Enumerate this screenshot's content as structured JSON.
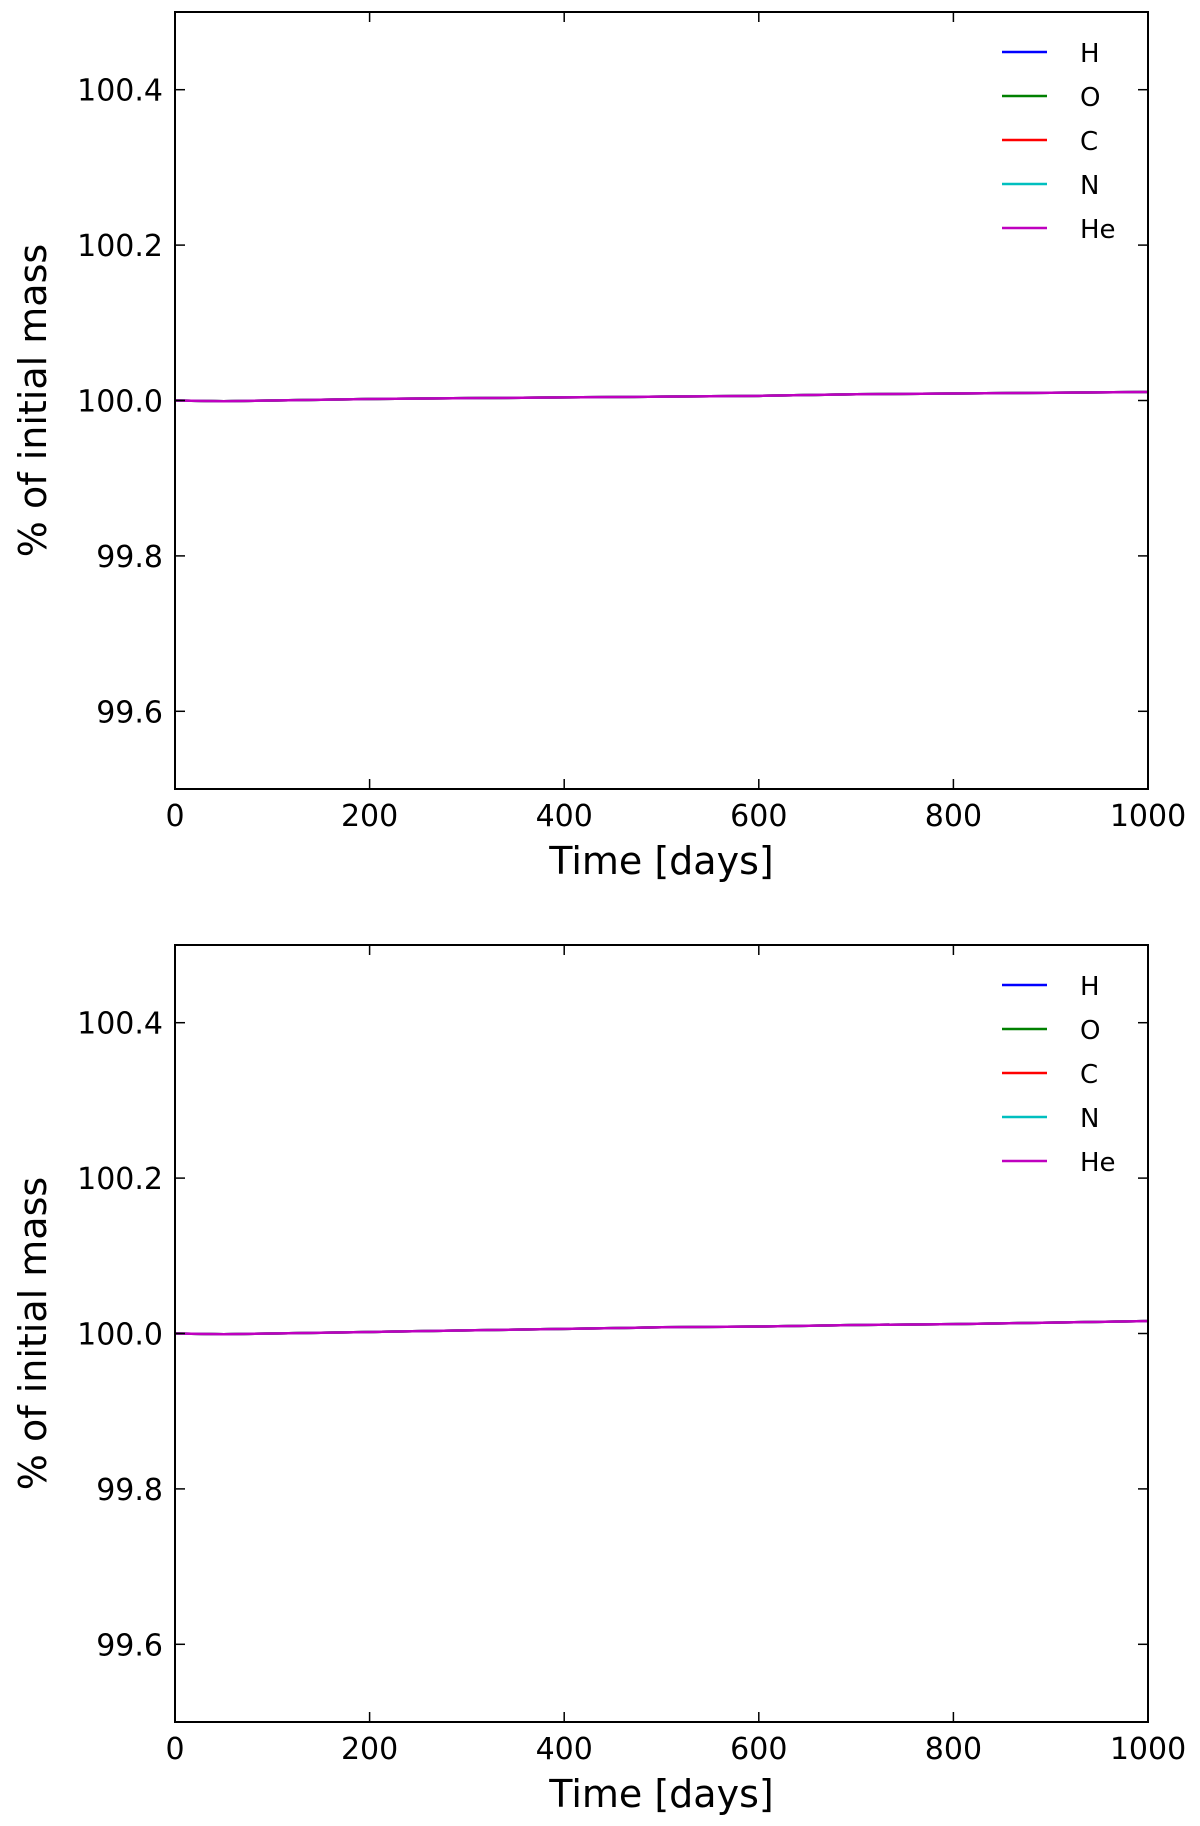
{
  "chart_data": [
    {
      "type": "line",
      "xlabel": "Time [days]",
      "ylabel": "% of initial mass",
      "xlim": [
        0,
        1000
      ],
      "ylim": [
        99.5,
        100.5
      ],
      "xticks": [
        0,
        200,
        400,
        600,
        800,
        1000
      ],
      "xtick_labels": [
        "0",
        "200",
        "400",
        "600",
        "800",
        "1000"
      ],
      "yticks": [
        99.6,
        99.8,
        100.0,
        100.2,
        100.4
      ],
      "ytick_labels": [
        "99.6",
        "99.8",
        "100.0",
        "100.2",
        "100.4"
      ],
      "grid": false,
      "legend_position": "top-right",
      "x": [
        0,
        50,
        100,
        200,
        300,
        400,
        500,
        600,
        700,
        800,
        900,
        1000
      ],
      "series": [
        {
          "name": "H",
          "color": "#0000ff",
          "values": [
            100.0,
            99.999,
            100.0,
            100.002,
            100.003,
            100.004,
            100.005,
            100.006,
            100.008,
            100.009,
            100.01,
            100.011
          ]
        },
        {
          "name": "O",
          "color": "#008000",
          "values": [
            100.0,
            99.999,
            100.0,
            100.002,
            100.003,
            100.004,
            100.005,
            100.006,
            100.008,
            100.009,
            100.01,
            100.011
          ]
        },
        {
          "name": "C",
          "color": "#ff0000",
          "values": [
            100.0,
            99.999,
            100.0,
            100.002,
            100.003,
            100.004,
            100.005,
            100.006,
            100.008,
            100.009,
            100.01,
            100.011
          ]
        },
        {
          "name": "N",
          "color": "#00bfbf",
          "values": [
            100.0,
            99.999,
            100.0,
            100.002,
            100.003,
            100.004,
            100.005,
            100.006,
            100.008,
            100.009,
            100.01,
            100.011
          ]
        },
        {
          "name": "He",
          "color": "#bf00bf",
          "values": [
            100.0,
            99.999,
            100.0,
            100.002,
            100.003,
            100.004,
            100.005,
            100.006,
            100.008,
            100.009,
            100.01,
            100.011
          ]
        }
      ]
    },
    {
      "type": "line",
      "xlabel": "Time [days]",
      "ylabel": "% of initial mass",
      "xlim": [
        0,
        1000
      ],
      "ylim": [
        99.5,
        100.5
      ],
      "xticks": [
        0,
        200,
        400,
        600,
        800,
        1000
      ],
      "xtick_labels": [
        "0",
        "200",
        "400",
        "600",
        "800",
        "1000"
      ],
      "yticks": [
        99.6,
        99.8,
        100.0,
        100.2,
        100.4
      ],
      "ytick_labels": [
        "99.6",
        "99.8",
        "100.0",
        "100.2",
        "100.4"
      ],
      "grid": false,
      "legend_position": "top-right",
      "x": [
        0,
        50,
        100,
        200,
        300,
        400,
        500,
        600,
        700,
        800,
        900,
        1000
      ],
      "series": [
        {
          "name": "H",
          "color": "#0000ff",
          "values": [
            100.0,
            99.999,
            100.0,
            100.002,
            100.004,
            100.006,
            100.008,
            100.009,
            100.011,
            100.012,
            100.014,
            100.016
          ]
        },
        {
          "name": "O",
          "color": "#008000",
          "values": [
            100.0,
            99.999,
            100.0,
            100.002,
            100.004,
            100.006,
            100.008,
            100.009,
            100.011,
            100.012,
            100.014,
            100.016
          ]
        },
        {
          "name": "C",
          "color": "#ff0000",
          "values": [
            100.0,
            99.999,
            100.0,
            100.002,
            100.004,
            100.006,
            100.008,
            100.009,
            100.011,
            100.012,
            100.014,
            100.016
          ]
        },
        {
          "name": "N",
          "color": "#00bfbf",
          "values": [
            100.0,
            99.999,
            100.0,
            100.002,
            100.004,
            100.006,
            100.008,
            100.009,
            100.011,
            100.012,
            100.014,
            100.016
          ]
        },
        {
          "name": "He",
          "color": "#bf00bf",
          "values": [
            100.0,
            99.999,
            100.0,
            100.002,
            100.004,
            100.006,
            100.008,
            100.009,
            100.011,
            100.012,
            100.014,
            100.016
          ]
        }
      ]
    }
  ]
}
